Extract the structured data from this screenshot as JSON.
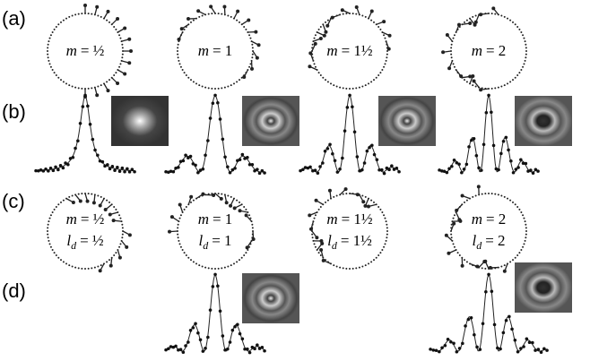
{
  "rows": [
    {
      "label": "(a)"
    },
    {
      "label": "(b)"
    },
    {
      "label": "(c)"
    },
    {
      "label": "(d)"
    }
  ],
  "row_a": [
    {
      "var": "m",
      "value": "= ½"
    },
    {
      "var": "m",
      "value": "= 1"
    },
    {
      "var": "m",
      "value": "= 1½"
    },
    {
      "var": "m",
      "value": "= 2"
    }
  ],
  "row_c": [
    {
      "var": "m",
      "value": "= ½",
      "l": "l",
      "sub": "d",
      "l_value": "= ½"
    },
    {
      "var": "m",
      "value": "= 1",
      "l": "l",
      "sub": "d",
      "l_value": "= 1"
    },
    {
      "var": "m",
      "value": "= 1½",
      "l": "l",
      "sub": "d",
      "l_value": "= 1½"
    },
    {
      "var": "m",
      "value": "= 2",
      "l": "l",
      "sub": "d",
      "l_value": "= 2"
    }
  ]
}
